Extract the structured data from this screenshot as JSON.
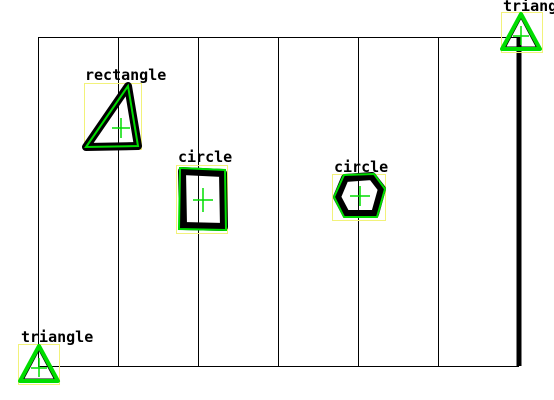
{
  "scene": {
    "colors": {
      "background": "#ffffff",
      "grid_line": "#000000",
      "contour": "#00dd00",
      "bbox": "#f2f27a",
      "center_mark": "#00dd00",
      "shape_fill": "#000000",
      "label": "#000000"
    }
  },
  "detections": [
    {
      "label": "rectangle",
      "drawn_shape": "triangle"
    },
    {
      "label": "circle",
      "drawn_shape": "quadrilateral"
    },
    {
      "label": "circle",
      "drawn_shape": "pentagon"
    },
    {
      "label": "triangle",
      "drawn_shape": "triangle"
    },
    {
      "label": "triangle",
      "drawn_shape": "triangle"
    }
  ]
}
